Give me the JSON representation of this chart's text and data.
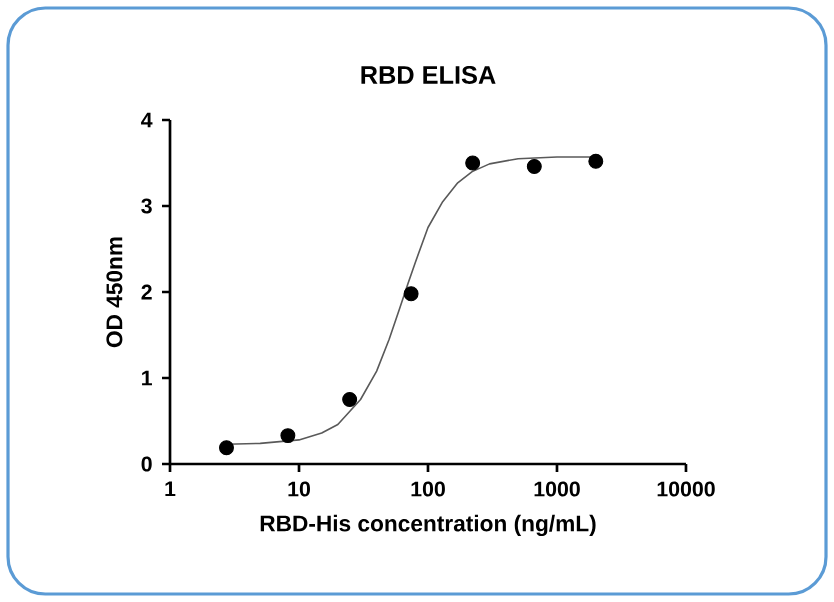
{
  "chart_data": {
    "type": "scatter",
    "title": "RBD ELISA",
    "xlabel": "RBD-His concentration (ng/mL)",
    "ylabel": "OD 450nm",
    "log": "x",
    "xlim": [
      1,
      10000
    ],
    "xticks": [
      1,
      10,
      100,
      1000,
      10000
    ],
    "ylim": [
      0,
      4
    ],
    "yticks": [
      0,
      1,
      2,
      3,
      4
    ],
    "series": [
      {
        "marker": "circle",
        "color": "#000000",
        "x": [
          2.74,
          8.2,
          24.7,
          74,
          222,
          667,
          2000
        ],
        "values": [
          0.19,
          0.33,
          0.75,
          1.98,
          3.5,
          3.46,
          3.52
        ]
      },
      {
        "type": "line",
        "marker": "none",
        "line_style": "solid",
        "color": "#595959",
        "x": [
          2.74,
          5,
          10,
          15,
          20,
          30,
          40,
          50,
          60,
          70,
          80,
          100,
          130,
          170,
          220,
          300,
          500,
          1000,
          2000
        ],
        "values": [
          0.23,
          0.24,
          0.28,
          0.36,
          0.46,
          0.75,
          1.08,
          1.45,
          1.8,
          2.1,
          2.35,
          2.75,
          3.05,
          3.27,
          3.4,
          3.49,
          3.55,
          3.57,
          3.57
        ]
      }
    ]
  }
}
